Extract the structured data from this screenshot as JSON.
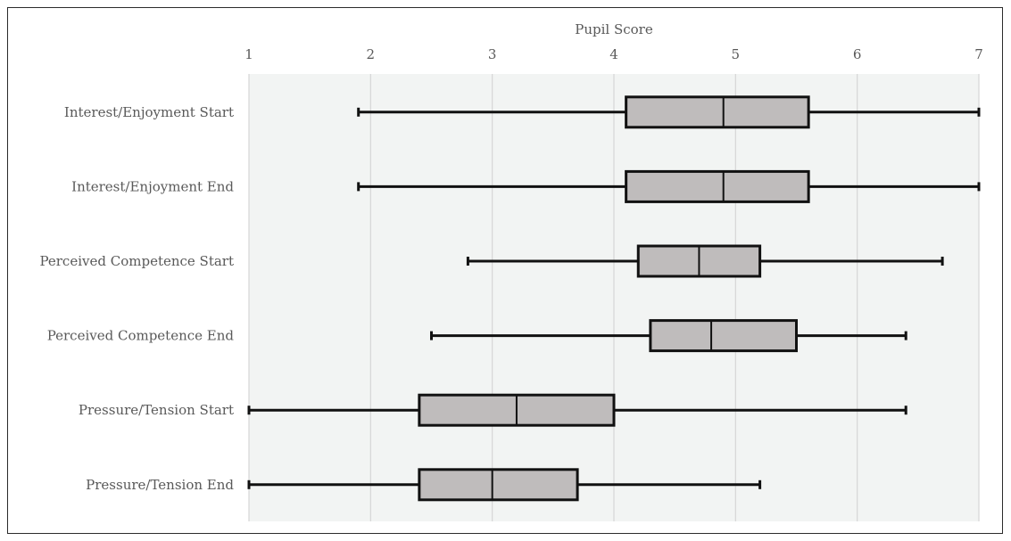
{
  "chart_data": {
    "type": "boxplot",
    "orientation": "horizontal",
    "xlabel": "Pupil Score",
    "xlim": [
      1,
      7
    ],
    "x_ticks": [
      "1",
      "2",
      "3",
      "4",
      "5",
      "6",
      "7"
    ],
    "grid": true,
    "x_axis_position": "top",
    "box_fill": "#bfbcbc",
    "stroke_color": "#111111",
    "plot_background": "#f2f4f3",
    "series": [
      {
        "label": "Interest/Enjoyment  Start",
        "min": 1.9,
        "q1": 4.1,
        "median": 4.9,
        "q3": 5.6,
        "max": 7.0
      },
      {
        "label": "Interest/Enjoyment  End",
        "min": 1.9,
        "q1": 4.1,
        "median": 4.9,
        "q3": 5.6,
        "max": 7.0
      },
      {
        "label": "Perceived Competence  Start",
        "min": 2.8,
        "q1": 4.2,
        "median": 4.7,
        "q3": 5.2,
        "max": 6.7
      },
      {
        "label": "Perceived Competence  End",
        "min": 2.5,
        "q1": 4.3,
        "median": 4.8,
        "q3": 5.5,
        "max": 6.4
      },
      {
        "label": "Pressure/Tension  Start",
        "min": 1.0,
        "q1": 2.4,
        "median": 3.2,
        "q3": 4.0,
        "max": 6.4
      },
      {
        "label": "Pressure/Tension  End",
        "min": 1.0,
        "q1": 2.4,
        "median": 3.0,
        "q3": 3.7,
        "max": 5.2
      }
    ]
  }
}
